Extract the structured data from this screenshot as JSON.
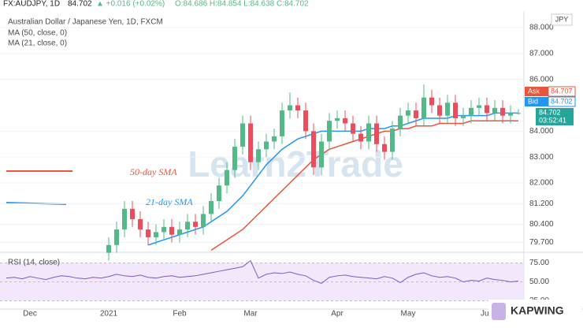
{
  "header": {
    "symbol": "FX:AUDJPY, 1D",
    "last": "84.702",
    "change": "▲ +0.016 (+0.02%)",
    "ohlc": "O:84.686 H:84.854 L:84.638 C:84.702"
  },
  "legend": {
    "instrument": "Australian Dollar / Japanese Yen, 1D, FXCM",
    "ma50": "MA (50, close, 0)",
    "ma21": "MA (21, close, 0)"
  },
  "annotations": {
    "ma50": "50-day SMA",
    "ma21": "21-day SMA"
  },
  "price_tags": {
    "currency": "JPY",
    "ask": "Ask",
    "ask_price": "84.707",
    "bid": "Bid",
    "bid_price": "84.702",
    "last": "84.702",
    "countdown": "03:52:41"
  },
  "watermark": "Learn2Trade",
  "badge": "KAPWING",
  "chart_data": [
    {
      "type": "candlestick",
      "categories": [
        null,
        null,
        null,
        "Dec",
        null,
        null,
        null,
        null,
        null,
        null,
        null,
        null,
        null,
        "2021",
        null,
        null,
        null,
        null,
        null,
        null,
        null,
        null,
        "Feb",
        null,
        null,
        null,
        null,
        null,
        null,
        null,
        null,
        "Mar",
        null,
        null,
        null,
        null,
        null,
        null,
        null,
        null,
        null,
        null,
        "Apr",
        null,
        null,
        null,
        null,
        null,
        null,
        null,
        null,
        "May",
        null,
        null,
        null,
        null,
        null,
        null,
        null,
        null,
        null,
        "Jun",
        null,
        null,
        null,
        null
      ],
      "open": [
        null,
        null,
        null,
        null,
        null,
        null,
        null,
        null,
        null,
        null,
        null,
        null,
        null,
        79.3,
        79.6,
        80.2,
        81.0,
        80.6,
        80.2,
        79.9,
        80.1,
        80.3,
        80.0,
        80.2,
        80.5,
        80.3,
        80.8,
        81.3,
        81.9,
        82.5,
        83.4,
        84.3,
        82.8,
        83.3,
        83.6,
        83.8,
        84.8,
        85.0,
        84.8,
        84.0,
        82.6,
        83.6,
        84.4,
        84.5,
        84.3,
        83.9,
        83.6,
        84.3,
        83.5,
        83.2,
        84.1,
        84.6,
        84.8,
        84.5,
        85.3,
        85.0,
        84.6,
        85.1,
        84.5,
        84.6,
        84.9,
        85.0,
        84.7,
        84.9,
        84.6,
        84.686
      ],
      "high": [
        null,
        null,
        null,
        null,
        null,
        null,
        null,
        null,
        null,
        null,
        null,
        null,
        null,
        79.9,
        80.5,
        81.3,
        81.3,
        80.9,
        80.5,
        80.4,
        80.6,
        80.6,
        80.5,
        80.8,
        80.8,
        81.1,
        81.6,
        82.2,
        82.8,
        83.7,
        84.6,
        84.6,
        83.6,
        83.9,
        84.1,
        85.1,
        85.5,
        85.3,
        85.1,
        84.3,
        83.9,
        84.7,
        84.8,
        84.8,
        84.6,
        84.2,
        84.6,
        84.6,
        83.8,
        84.4,
        84.9,
        85.1,
        85.1,
        85.8,
        85.6,
        85.3,
        85.4,
        85.4,
        84.9,
        85.2,
        85.3,
        85.3,
        85.2,
        85.2,
        85.0,
        84.854
      ],
      "low": [
        null,
        null,
        null,
        null,
        null,
        null,
        null,
        null,
        null,
        null,
        null,
        null,
        null,
        79.0,
        79.3,
        79.9,
        80.3,
        79.9,
        79.6,
        79.6,
        79.8,
        79.7,
        79.7,
        79.9,
        80.0,
        80.0,
        80.5,
        81.0,
        81.6,
        82.2,
        83.1,
        82.5,
        82.5,
        83.0,
        83.3,
        83.5,
        84.5,
        84.5,
        83.7,
        82.3,
        82.3,
        83.3,
        84.1,
        84.0,
        83.6,
        83.3,
        83.3,
        83.2,
        82.9,
        82.9,
        83.8,
        84.3,
        84.2,
        84.2,
        84.7,
        84.3,
        84.3,
        84.2,
        84.2,
        84.3,
        84.6,
        84.4,
        84.4,
        84.3,
        84.3,
        84.638
      ],
      "close": [
        null,
        null,
        null,
        null,
        null,
        null,
        null,
        null,
        null,
        null,
        null,
        null,
        null,
        79.6,
        80.2,
        81.0,
        80.6,
        80.2,
        79.9,
        80.1,
        80.3,
        80.0,
        80.2,
        80.5,
        80.3,
        80.8,
        81.3,
        81.9,
        82.5,
        83.4,
        84.3,
        82.8,
        83.3,
        83.6,
        83.8,
        84.8,
        85.0,
        84.8,
        84.0,
        82.6,
        83.6,
        84.4,
        84.5,
        84.3,
        83.9,
        83.6,
        84.3,
        83.5,
        83.2,
        84.1,
        84.6,
        84.8,
        84.5,
        85.3,
        85.0,
        84.6,
        85.1,
        84.5,
        84.6,
        84.9,
        85.0,
        84.7,
        84.9,
        84.6,
        84.7,
        84.702
      ],
      "up_color": "#53b987",
      "down_color": "#eb4d5c",
      "series": [
        {
          "name": "MA (21, close, 0)",
          "color": "#2196f3",
          "values": [
            null,
            null,
            null,
            null,
            null,
            null,
            null,
            null,
            null,
            null,
            null,
            null,
            null,
            null,
            null,
            null,
            null,
            null,
            79.6,
            79.7,
            79.8,
            79.9,
            80.0,
            80.1,
            80.2,
            80.3,
            80.5,
            80.7,
            80.9,
            81.2,
            81.5,
            81.9,
            82.3,
            82.7,
            83.0,
            83.3,
            83.5,
            83.7,
            83.8,
            83.9,
            84.0,
            84.0,
            84.0,
            84.0,
            84.0,
            84.0,
            84.1,
            84.1,
            84.1,
            84.2,
            84.2,
            84.3,
            84.4,
            84.5,
            84.5,
            84.5,
            84.5,
            84.6,
            84.6,
            84.6,
            84.6,
            84.6,
            84.7,
            84.7,
            84.7,
            84.7
          ]
        },
        {
          "name": "MA (50, close, 0)",
          "color": "#e8543c",
          "values": [
            null,
            null,
            null,
            null,
            null,
            null,
            null,
            null,
            null,
            null,
            null,
            null,
            null,
            null,
            null,
            null,
            null,
            null,
            null,
            null,
            null,
            null,
            null,
            null,
            null,
            null,
            79.4,
            79.6,
            79.8,
            80.0,
            80.2,
            80.5,
            80.8,
            81.1,
            81.4,
            81.7,
            82.0,
            82.3,
            82.6,
            82.9,
            83.1,
            83.3,
            83.4,
            83.5,
            83.6,
            83.7,
            83.8,
            83.9,
            84.0,
            84.0,
            84.1,
            84.1,
            84.2,
            84.2,
            84.2,
            84.3,
            84.3,
            84.3,
            84.3,
            84.4,
            84.4,
            84.4,
            84.4,
            84.4,
            84.4,
            84.4
          ]
        }
      ],
      "ylim": [
        79.38,
        88.52
      ],
      "yticks": [
        {
          "value": 88,
          "label": "88.000"
        },
        {
          "value": 87,
          "label": "87.000"
        },
        {
          "value": 86,
          "label": "86.000"
        },
        {
          "value": 84,
          "label": "84.000"
        },
        {
          "value": 83,
          "label": "83.000"
        },
        {
          "value": 82,
          "label": "82.000"
        },
        {
          "value": 81.2,
          "label": "81.200"
        },
        {
          "value": 80.4,
          "label": "80.400"
        },
        {
          "value": 79.7,
          "label": "79.700"
        }
      ],
      "grid": true
    },
    {
      "type": "line",
      "title": "RSI (14, close)",
      "color": "#7e57c2",
      "values": [
        55,
        56,
        54,
        57,
        55,
        53,
        56,
        58,
        57,
        55,
        54,
        56,
        55,
        57,
        60,
        58,
        57,
        59,
        56,
        55,
        57,
        58,
        56,
        57,
        58,
        60,
        62,
        64,
        66,
        68,
        70,
        78,
        55,
        60,
        62,
        61,
        63,
        60,
        58,
        52,
        48,
        56,
        58,
        59,
        57,
        56,
        55,
        54,
        57,
        55,
        49,
        56,
        60,
        62,
        58,
        56,
        57,
        55,
        50,
        52,
        51,
        55,
        53,
        52,
        50,
        51
      ],
      "ylim": [
        14,
        87
      ],
      "yticks": [
        {
          "value": 75,
          "label": "75.00"
        },
        {
          "value": 50,
          "label": "50.00"
        },
        {
          "value": 25,
          "label": "25.00"
        }
      ]
    }
  ]
}
